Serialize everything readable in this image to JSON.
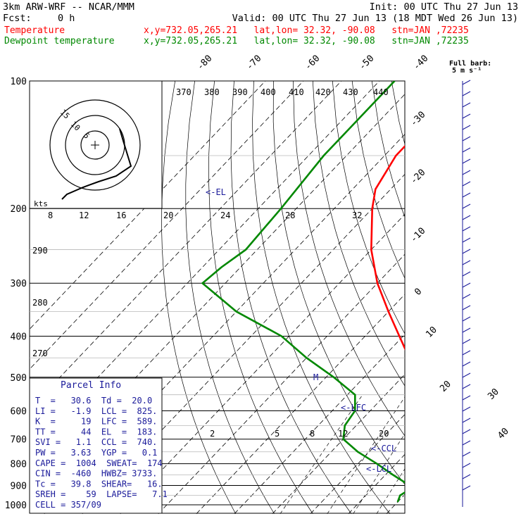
{
  "header": {
    "model": "3km ARW-WRF -- NCAR/MMM",
    "init": "Init: 00 UTC Thu 27 Jun 13",
    "fcst_label": "Fcst:",
    "fcst_value": "0 h",
    "valid": "Valid: 00 UTC Thu 27 Jun 13 (18 MDT Wed 26 Jun 13)",
    "temp_label": "Temperature",
    "dew_label": "Dewpoint temperature",
    "loc_text": "x,y=732.05,265.21   lat,lon= 32.32, -90.08   stn=JAN ,72235",
    "temp_color": "#ff0000",
    "dew_color": "#008800"
  },
  "parcel_info": {
    "title": "Parcel Info",
    "rows": [
      "T  =   30.6  Td =  20.0",
      "LI =   -1.9  LCL =  825.",
      "K  =     19  LFC =  589.",
      "TT =     44  EL  =  183.",
      "SVI =   1.1  CCL =  740.",
      "PW =   3.63  YGP =   0.1",
      "CAPE =  1004  SWEAT=  174",
      "CIN =  -460  HWBZ= 3733.",
      "Tc =   39.8  SHEAR=   16.",
      "SREH =    59  LAPSE=   7.1",
      "CELL = 357/09"
    ]
  },
  "barb_title": "Full barb:",
  "barb_unit": "5 m s⁻¹",
  "hodo_units": "kts",
  "hodo_rings": [
    "5",
    "10",
    "15"
  ],
  "chart_data": {
    "type": "line",
    "title": "",
    "pressure_ticks": [
      100,
      200,
      300,
      400,
      500,
      600,
      700,
      800,
      900,
      1000
    ],
    "isotherm_top_labels": [
      "-80",
      "-70",
      "-60",
      "-50",
      "-40"
    ],
    "isotherm_right_labels": [
      "-30",
      "-20",
      "-10",
      "0",
      "10",
      "20",
      "30",
      "40"
    ],
    "theta_labels_top": [
      "370",
      "380",
      "390",
      "400",
      "410",
      "420",
      "430",
      "440"
    ],
    "theta_labels_left": [
      "290",
      "280",
      "270"
    ],
    "mixing_ratio_labels": [
      "2",
      "5",
      "8",
      "12",
      "20"
    ],
    "mixing_ratio_top_labels": [
      "8",
      "12",
      "16",
      "20",
      "24",
      "28",
      "32"
    ],
    "annotations": [
      "<-EL",
      "<-LFC",
      "<-CCL",
      "<-LCL",
      "M"
    ],
    "series": [
      {
        "name": "Temperature",
        "color": "#ff0000",
        "points": [
          [
            100,
            -66
          ],
          [
            120,
            -67
          ],
          [
            150,
            -67
          ],
          [
            180,
            -64
          ],
          [
            200,
            -60
          ],
          [
            250,
            -50
          ],
          [
            300,
            -40
          ],
          [
            350,
            -30
          ],
          [
            400,
            -21
          ],
          [
            450,
            -13
          ],
          [
            500,
            -8
          ],
          [
            550,
            -3
          ],
          [
            600,
            1
          ],
          [
            650,
            6
          ],
          [
            700,
            9
          ],
          [
            750,
            13
          ],
          [
            800,
            16
          ],
          [
            850,
            19
          ],
          [
            900,
            22
          ],
          [
            950,
            26
          ],
          [
            985,
            30.6
          ]
        ]
      },
      {
        "name": "Dewpoint temperature",
        "color": "#008800",
        "points": [
          [
            100,
            -86
          ],
          [
            150,
            -86
          ],
          [
            200,
            -84
          ],
          [
            250,
            -83
          ],
          [
            275,
            -85
          ],
          [
            300,
            -86
          ],
          [
            350,
            -70
          ],
          [
            400,
            -52
          ],
          [
            450,
            -40
          ],
          [
            500,
            -28
          ],
          [
            550,
            -18
          ],
          [
            600,
            -14
          ],
          [
            650,
            -13
          ],
          [
            700,
            -10
          ],
          [
            750,
            -3
          ],
          [
            800,
            5
          ],
          [
            850,
            12
          ],
          [
            900,
            19
          ],
          [
            920,
            20
          ],
          [
            950,
            19
          ],
          [
            985,
            20
          ]
        ]
      }
    ]
  }
}
